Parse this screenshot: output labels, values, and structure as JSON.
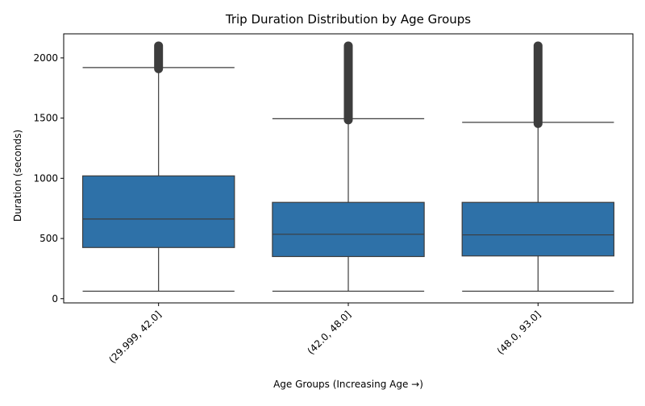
{
  "chart_data": {
    "type": "boxplot",
    "title": "Trip Duration Distribution by Age Groups",
    "xlabel": "Age Groups (Increasing Age →)",
    "ylabel": "Duration (seconds)",
    "ylim": [
      -35,
      2200
    ],
    "yticks": [
      0,
      500,
      1000,
      1500,
      2000
    ],
    "categories": [
      "(29.999, 42.0]",
      "(42.0, 48.0]",
      "(48.0, 93.0]"
    ],
    "boxes": [
      {
        "category": "(29.999, 42.0]",
        "whisker_low": 62,
        "q1": 425,
        "median": 662,
        "q3": 1020,
        "whisker_high": 1920,
        "outlier_range": [
          1910,
          2100
        ]
      },
      {
        "category": "(42.0, 48.0]",
        "whisker_low": 62,
        "q1": 350,
        "median": 535,
        "q3": 800,
        "whisker_high": 1495,
        "outlier_range": [
          1485,
          2100
        ]
      },
      {
        "category": "(48.0, 93.0]",
        "whisker_low": 62,
        "q1": 355,
        "median": 530,
        "q3": 800,
        "whisker_high": 1465,
        "outlier_range": [
          1455,
          2100
        ]
      }
    ],
    "colors": {
      "box": "#2e71a8",
      "edge": "#3d3d3d",
      "outlier": "#3d3d3d"
    },
    "grid": false,
    "legend": "none"
  }
}
